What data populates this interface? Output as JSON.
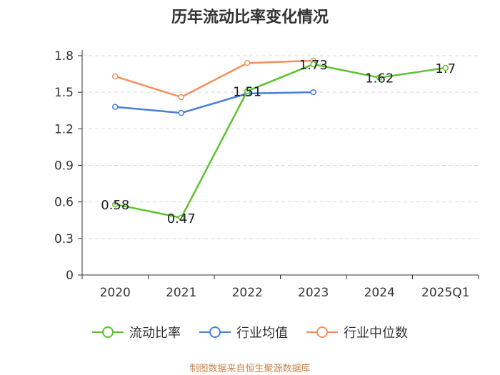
{
  "page": {
    "title": "历年流动比率变化情况",
    "source": "制图数据来自恒生聚源数据库"
  },
  "chart_data": {
    "type": "line",
    "title": "历年流动比率变化情况",
    "categories": [
      "2020",
      "2021",
      "2022",
      "2023",
      "2024",
      "2025Q1"
    ],
    "ylim": [
      0,
      1.8
    ],
    "yticks": [
      "0",
      "0.3",
      "0.6",
      "0.9",
      "1.2",
      "1.5",
      "1.8"
    ],
    "grid": true,
    "legend_position": "bottom",
    "series": [
      {
        "name": "流动比率",
        "color": "#5cc22e",
        "values": [
          0.58,
          0.47,
          1.51,
          1.73,
          1.62,
          1.7
        ],
        "labels": [
          "0.58",
          "0.47",
          "1.51",
          "1.73",
          "1.62",
          "1.7"
        ]
      },
      {
        "name": "行业均值",
        "color": "#4a7fdc",
        "values": [
          1.38,
          1.33,
          1.49,
          1.5,
          null,
          null
        ]
      },
      {
        "name": "行业中位数",
        "color": "#f5905a",
        "values": [
          1.63,
          1.46,
          1.74,
          1.76,
          null,
          null
        ]
      }
    ]
  }
}
